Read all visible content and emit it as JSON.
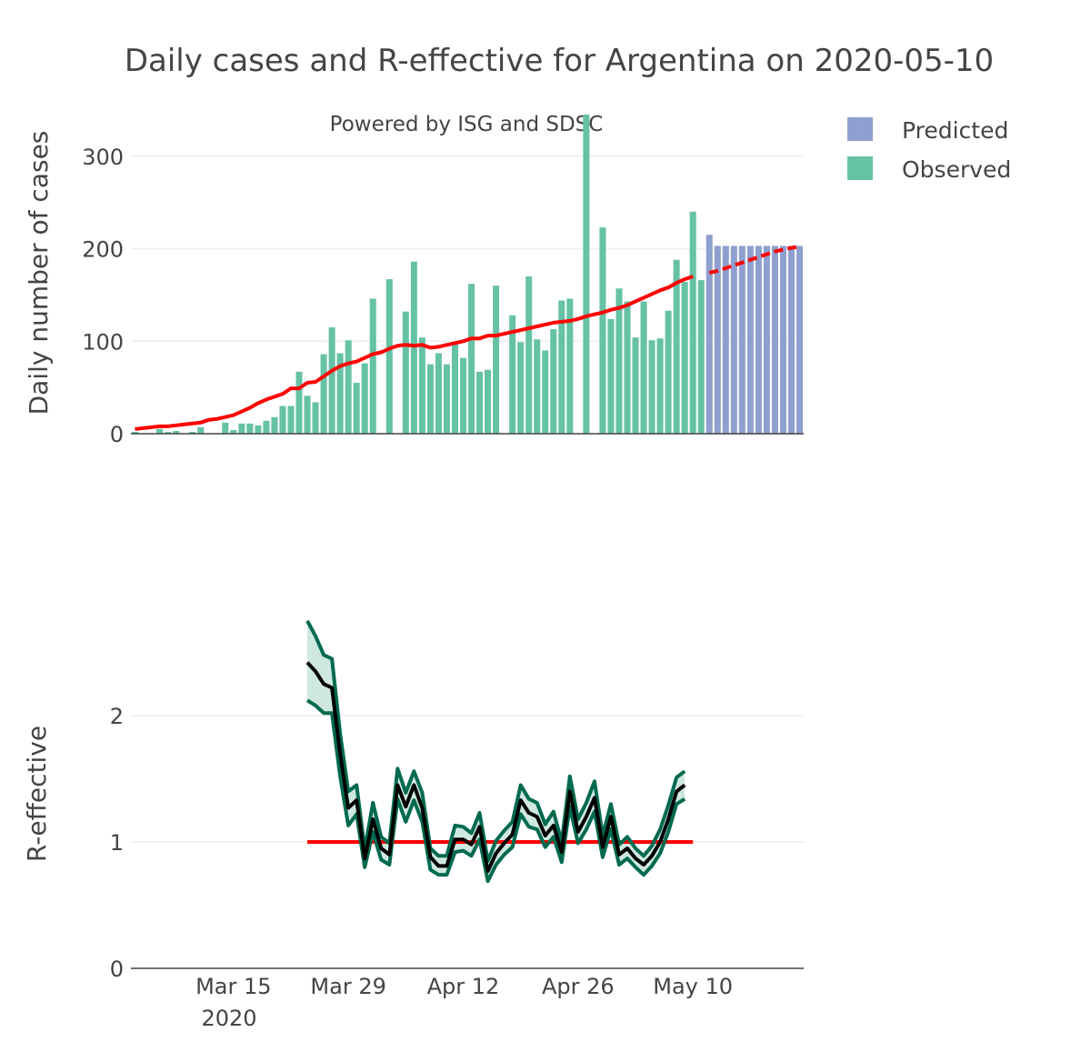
{
  "chart_data": [
    {
      "type": "bar",
      "title": "Daily cases and R-effective for Argentina on 2020-05-10",
      "subtitle": "Powered by ISG and SDSC",
      "xlabel": "",
      "ylabel": "Daily number of cases",
      "ylim": [
        0,
        340
      ],
      "yticks": [
        0,
        100,
        200,
        300
      ],
      "legend": {
        "position": "top-right",
        "items": [
          {
            "name": "Predicted",
            "color": "#8f9fcf"
          },
          {
            "name": "Observed",
            "color": "#66c2a5"
          }
        ]
      },
      "start_date": "2020-03-03",
      "series": [
        {
          "name": "Observed",
          "color": "#66c2a5",
          "start_day": 0,
          "values": [
            2,
            0,
            0,
            5,
            2,
            3,
            0,
            2,
            7,
            0,
            0,
            12,
            4,
            11,
            11,
            9,
            14,
            18,
            30,
            30,
            67,
            41,
            34,
            86,
            115,
            87,
            101,
            55,
            76,
            146,
            0,
            167,
            0,
            132,
            186,
            104,
            75,
            87,
            75,
            98,
            82,
            162,
            67,
            69,
            160,
            0,
            128,
            99,
            170,
            102,
            90,
            113,
            144,
            146,
            0,
            345,
            0,
            223,
            124,
            157,
            143,
            104,
            143,
            101,
            103,
            133,
            188,
            164,
            240,
            166
          ]
        },
        {
          "name": "Predicted",
          "color": "#8f9fcf",
          "start_day": 70,
          "values": [
            215,
            203,
            203,
            203,
            203,
            203,
            203,
            203,
            203,
            203,
            203,
            203
          ]
        }
      ],
      "smoothed_line": {
        "name": "Smoothed",
        "color": "#ff0000",
        "values": [
          5,
          6,
          7,
          8,
          8,
          9,
          10,
          11,
          12,
          15,
          16,
          18,
          20,
          24,
          28,
          33,
          37,
          40,
          43,
          49,
          49,
          55,
          56,
          62,
          68,
          73,
          76,
          78,
          82,
          86,
          88,
          92,
          95,
          96,
          95,
          96,
          93,
          94,
          96,
          98,
          100,
          103,
          103,
          106,
          106,
          108,
          110,
          112,
          114,
          116,
          118,
          120,
          121,
          122,
          124,
          127,
          129,
          131,
          134,
          136,
          139,
          143,
          147,
          151,
          155,
          158,
          163,
          167,
          170,
          172,
          174,
          176,
          179,
          182,
          185,
          188,
          191,
          194,
          197,
          199,
          201,
          202
        ]
      }
    },
    {
      "type": "line",
      "xlabel": "",
      "ylabel": "R-effective",
      "ylim": [
        0,
        2.75
      ],
      "yticks": [
        0,
        1,
        2
      ],
      "xticks": [
        {
          "label": "Mar 15",
          "day": 12
        },
        {
          "label": "Mar 29",
          "day": 26
        },
        {
          "label": "Apr 12",
          "day": 40
        },
        {
          "label": "Apr 26",
          "day": 54
        },
        {
          "label": "May 10",
          "day": 68
        }
      ],
      "xtick_sublabel": "2020",
      "threshold": {
        "value": 1,
        "start_day": 21,
        "end_day": 68,
        "color": "#ff0000"
      },
      "band_color": "#cfe8df",
      "series": [
        {
          "name": "R-effective",
          "start_day": 21,
          "center": [
            2.42,
            2.35,
            2.25,
            2.22,
            1.7,
            1.27,
            1.33,
            0.87,
            1.18,
            0.95,
            0.9,
            1.45,
            1.28,
            1.45,
            1.27,
            0.88,
            0.81,
            0.81,
            1.02,
            1.02,
            0.98,
            1.12,
            0.77,
            0.91,
            0.99,
            1.06,
            1.33,
            1.23,
            1.2,
            1.05,
            1.13,
            0.92,
            1.4,
            1.08,
            1.2,
            1.35,
            0.96,
            1.2,
            0.9,
            0.95,
            0.87,
            0.82,
            0.89,
            1.0,
            1.18,
            1.4,
            1.45
          ],
          "lower": [
            2.12,
            2.08,
            2.02,
            2.02,
            1.52,
            1.13,
            1.22,
            0.8,
            1.08,
            0.86,
            0.82,
            1.34,
            1.16,
            1.33,
            1.16,
            0.78,
            0.74,
            0.74,
            0.92,
            0.93,
            0.89,
            1.02,
            0.69,
            0.82,
            0.9,
            0.96,
            1.22,
            1.12,
            1.1,
            0.96,
            1.04,
            0.84,
            1.28,
            0.99,
            1.1,
            1.24,
            0.88,
            1.1,
            0.82,
            0.87,
            0.8,
            0.74,
            0.81,
            0.91,
            1.08,
            1.3,
            1.34
          ],
          "upper": [
            2.75,
            2.63,
            2.48,
            2.45,
            1.86,
            1.4,
            1.45,
            0.94,
            1.31,
            1.04,
            0.99,
            1.58,
            1.39,
            1.56,
            1.39,
            0.95,
            0.89,
            0.89,
            1.13,
            1.12,
            1.07,
            1.23,
            0.85,
            1.01,
            1.09,
            1.16,
            1.45,
            1.34,
            1.31,
            1.14,
            1.24,
            1.0,
            1.52,
            1.18,
            1.31,
            1.48,
            1.05,
            1.3,
            0.98,
            1.04,
            0.95,
            0.89,
            0.97,
            1.1,
            1.29,
            1.51,
            1.56
          ],
          "line_color": "#000000",
          "edge_color": "#006a4e"
        }
      ]
    }
  ]
}
